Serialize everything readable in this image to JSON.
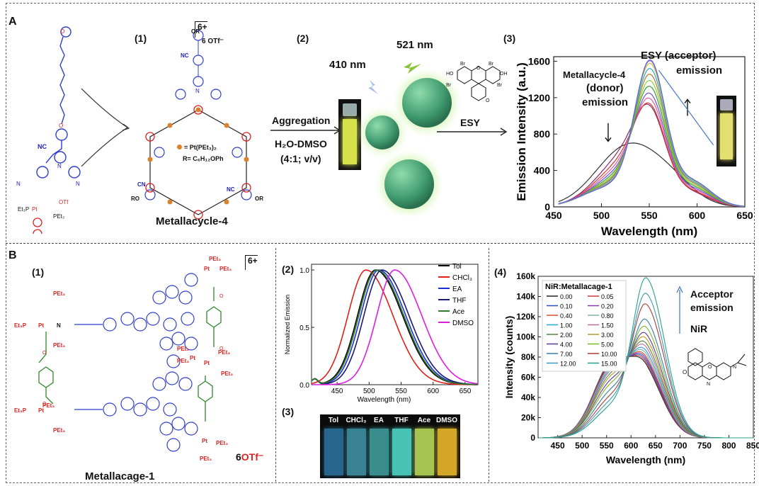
{
  "panelA": {
    "letter": "A",
    "sub1": "(1)",
    "sub2": "(2)",
    "sub3": "(3)",
    "charge": "6+",
    "counterion": "6 OTf⁻",
    "legend_pt": "= Pt(PEt₃)₂",
    "legend_r": "R= C₆H₁₂OPh",
    "name": "Metallacycle-4",
    "arrow_top": "Aggregation",
    "arrow_bottom1": "H₂O-DMSO",
    "arrow_bottom2": "(4:1; v/v)",
    "wl1": "410 nm",
    "wl2": "521 nm",
    "esy": "ESY",
    "chart_annotations": {
      "donor1": "Metallacycle-4",
      "donor2": "(donor)",
      "donor3": "emission",
      "acceptor1": "ESY (acceptor)",
      "acceptor2": "emission"
    }
  },
  "panelB": {
    "letter": "B",
    "sub1": "(1)",
    "sub2": "(2)",
    "sub3": "(3)",
    "sub4": "(4)",
    "charge": "6+",
    "counterion_num": "6",
    "counterion": "OTf⁻",
    "name": "Metallacage-1",
    "vials": [
      "Tol",
      "CHCl₃",
      "EA",
      "THF",
      "Ace",
      "DMSO"
    ],
    "vial_colors": [
      "#2b6f9a",
      "#3f8fa3",
      "#3f9c9a",
      "#4fd6c8",
      "#b7d85a",
      "#e9b72c"
    ],
    "chart4_annotations": {
      "acc1": "Acceptor",
      "acc2": "emission",
      "nir": "NiR"
    }
  },
  "chart_data": [
    {
      "type": "line",
      "ylabel": "Emission Intensity (a.u.)",
      "xlabel": "Wavelength (nm)",
      "xlim": [
        450,
        650
      ],
      "ylim": [
        0,
        1650
      ],
      "xticks": [
        450,
        500,
        550,
        600,
        650
      ],
      "yticks": [
        0,
        400,
        800,
        1200,
        1600
      ],
      "series_count": 12,
      "donor_peak_start": 665,
      "acceptor_peaks": [
        640,
        700,
        790,
        900,
        1000,
        1110,
        1200,
        1290,
        1370,
        1440,
        1480,
        1500
      ],
      "donor_levels": [
        665,
        560,
        480,
        420,
        370,
        330,
        300,
        275,
        255,
        240,
        228,
        218
      ]
    },
    {
      "type": "line",
      "ylabel": "Normalized Emission",
      "xlabel": "Wavelength (nm)",
      "xlim": [
        410,
        670
      ],
      "ylim": [
        0,
        1.05
      ],
      "xticks": [
        450,
        500,
        550,
        600,
        650
      ],
      "yticks": [
        0.0,
        0.5,
        1.0
      ],
      "series": [
        {
          "name": "Tol",
          "color": "#000000",
          "peak": 510
        },
        {
          "name": "CHCl₃",
          "color": "#e0201a",
          "peak": 495
        },
        {
          "name": "EA",
          "color": "#1b2fd6",
          "peak": 515
        },
        {
          "name": "THF",
          "color": "#1a1a6e",
          "peak": 520
        },
        {
          "name": "Ace",
          "color": "#2f7a2a",
          "peak": 512
        },
        {
          "name": "DMSO",
          "color": "#dd1ee0",
          "peak": 540
        }
      ]
    },
    {
      "type": "line",
      "ylabel": "Intensity (counts)",
      "xlabel": "Wavelength (nm)",
      "xlim": [
        410,
        850
      ],
      "ylim": [
        0,
        160000
      ],
      "xticks": [
        450,
        500,
        550,
        600,
        650,
        700,
        750,
        800,
        850
      ],
      "yticks": [
        0,
        20000,
        40000,
        60000,
        80000,
        100000,
        120000,
        140000,
        160000
      ],
      "ytick_labels": [
        "0",
        "20k",
        "40k",
        "60k",
        "80k",
        "100k",
        "120k",
        "140k",
        "160k"
      ],
      "legend_title": "NiR:Metallacage-1",
      "legend": [
        "0.00",
        "0.05",
        "0.10",
        "0.20",
        "0.40",
        "0.80",
        "1.00",
        "1.50",
        "2.00",
        "3.00",
        "4.00",
        "5.00",
        "7.00",
        "10.00",
        "12.00",
        "15.00"
      ],
      "donor_levels": [
        76000,
        75000,
        74000,
        73000,
        72000,
        70000,
        68000,
        66000,
        63000,
        60000,
        56000,
        52000,
        46000,
        40000,
        35000,
        30000
      ],
      "acceptor_levels": [
        66000,
        68000,
        70000,
        72000,
        74000,
        77000,
        80000,
        84000,
        88000,
        93000,
        98000,
        105000,
        113000,
        129000,
        140000,
        156000
      ]
    }
  ]
}
